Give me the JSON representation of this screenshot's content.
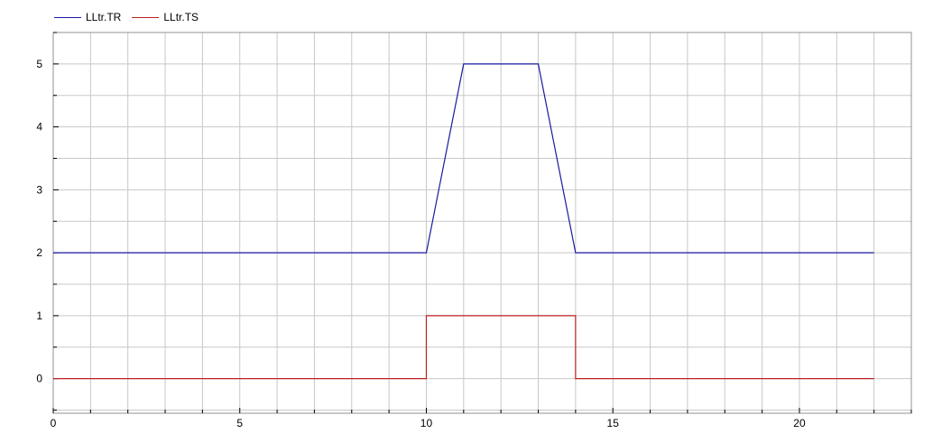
{
  "chart_data": {
    "type": "line",
    "title": "",
    "xlabel": "",
    "ylabel": "",
    "xlim": [
      0,
      23
    ],
    "ylim": [
      -0.55,
      5.5
    ],
    "grid": true,
    "legend_position": "top-left",
    "x_ticks": [
      0,
      5,
      10,
      15,
      20
    ],
    "y_ticks": [
      0,
      1,
      2,
      3,
      4,
      5
    ],
    "series": [
      {
        "name": "LLtr.TR",
        "color": "#1a1aa0",
        "points": [
          [
            0,
            2
          ],
          [
            10,
            2
          ],
          [
            11,
            5
          ],
          [
            13,
            5
          ],
          [
            14,
            2
          ],
          [
            22,
            2
          ]
        ]
      },
      {
        "name": "LLtr.TS",
        "color": "#c02020",
        "points": [
          [
            0,
            0
          ],
          [
            10,
            0
          ],
          [
            10,
            1
          ],
          [
            14,
            1
          ],
          [
            14,
            0
          ],
          [
            22,
            0
          ]
        ]
      }
    ]
  }
}
